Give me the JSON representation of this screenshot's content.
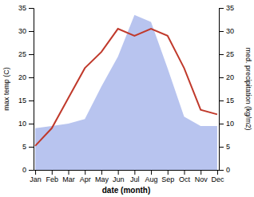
{
  "chart_data": {
    "type": "line",
    "categories": [
      "Jan",
      "Feb",
      "Mar",
      "Apr",
      "May",
      "Jun",
      "Jul",
      "Aug",
      "Sep",
      "Oct",
      "Nov",
      "Dec"
    ],
    "xlabel": "date (month)",
    "ylabel": "max temp (C)",
    "y2label": "med. precipitation (kg/m2)",
    "ylim": [
      0,
      35
    ],
    "yticks": [
      0,
      5,
      10,
      15,
      20,
      25,
      30,
      35
    ],
    "y2lim": [
      0,
      35
    ],
    "y2ticks": [
      0,
      5,
      10,
      15,
      20,
      25,
      30,
      35
    ],
    "grid": false,
    "series": [
      {
        "type": "area",
        "axis": "y2",
        "color": "#b8c4ef",
        "values": [
          9.0,
          9.5,
          10.0,
          11.0,
          18.0,
          24.5,
          33.5,
          32.0,
          22.0,
          11.5,
          9.5,
          9.5
        ]
      },
      {
        "type": "line",
        "axis": "y",
        "color": "#c0392b",
        "values": [
          5.2,
          9.0,
          15.5,
          22.0,
          25.5,
          30.5,
          29.0,
          30.5,
          29.0,
          22.0,
          13.0,
          12.0
        ]
      }
    ]
  }
}
